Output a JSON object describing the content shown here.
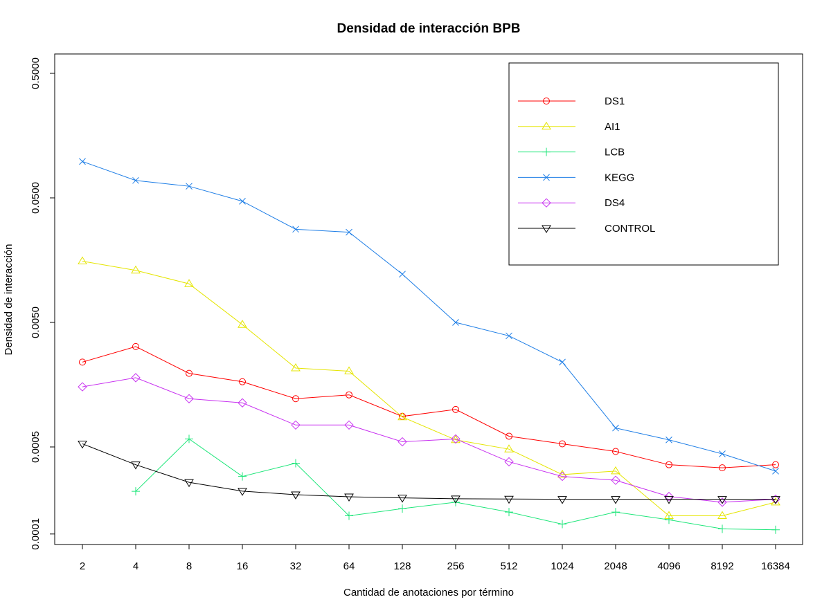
{
  "chart_data": {
    "type": "line",
    "title": "Densidad de interacción BPB",
    "xlabel": "Cantidad de anotaciones por término",
    "ylabel": "Densidad de interacción",
    "x_scale": "log2",
    "y_scale": "log10",
    "categories": [
      "2",
      "4",
      "8",
      "16",
      "32",
      "64",
      "128",
      "256",
      "512",
      "1024",
      "2048",
      "4096",
      "8192",
      "16384"
    ],
    "y_ticks": [
      "0.0001",
      "0.0005",
      "0.0050",
      "0.0500",
      "0.5000"
    ],
    "ylim": [
      0.0001,
      0.5
    ],
    "grid": false,
    "legend_position": "top-right",
    "series": [
      {
        "name": "DS1",
        "color": "#ff0000",
        "marker": "circle",
        "values": [
          0.0024,
          0.0032,
          0.00195,
          0.00167,
          0.00122,
          0.00131,
          0.00088,
          0.001,
          0.00061,
          0.00053,
          0.00046,
          0.00036,
          0.00034,
          0.00036
        ]
      },
      {
        "name": "AI1",
        "color": "#e5e500",
        "marker": "triangle-up",
        "values": [
          0.0155,
          0.0131,
          0.0102,
          0.0048,
          0.00215,
          0.00203,
          0.00087,
          0.00057,
          0.00048,
          0.0003,
          0.00032,
          0.00014,
          0.00014,
          0.00018
        ]
      },
      {
        "name": "LCB",
        "color": "#1ee67a",
        "marker": "plus",
        "values": [
          null,
          0.00022,
          0.00058,
          0.00029,
          0.00037,
          0.00014,
          0.00016,
          0.00018,
          0.00015,
          0.00012,
          0.00015,
          0.00013,
          0.00011,
          0.000108
        ]
      },
      {
        "name": "KEGG",
        "color": "#1e7ee6",
        "marker": "x",
        "values": [
          0.098,
          0.069,
          0.062,
          0.047,
          0.028,
          0.0265,
          0.0122,
          0.005,
          0.0039,
          0.0024,
          0.00071,
          0.00057,
          0.00044,
          0.00032
        ]
      },
      {
        "name": "DS4",
        "color": "#c832f0",
        "marker": "diamond",
        "values": [
          0.00152,
          0.0018,
          0.00122,
          0.00113,
          0.00075,
          0.00075,
          0.00055,
          0.00058,
          0.00038,
          0.00029,
          0.00027,
          0.0002,
          0.00018,
          0.00019
        ]
      },
      {
        "name": "CONTROL",
        "color": "#000000",
        "marker": "triangle-down",
        "values": [
          0.00053,
          0.00036,
          0.00026,
          0.000221,
          0.000207,
          0.000199,
          0.000195,
          0.000192,
          0.000191,
          0.00019,
          0.00019,
          0.00019,
          0.00019,
          0.00019
        ]
      }
    ]
  }
}
